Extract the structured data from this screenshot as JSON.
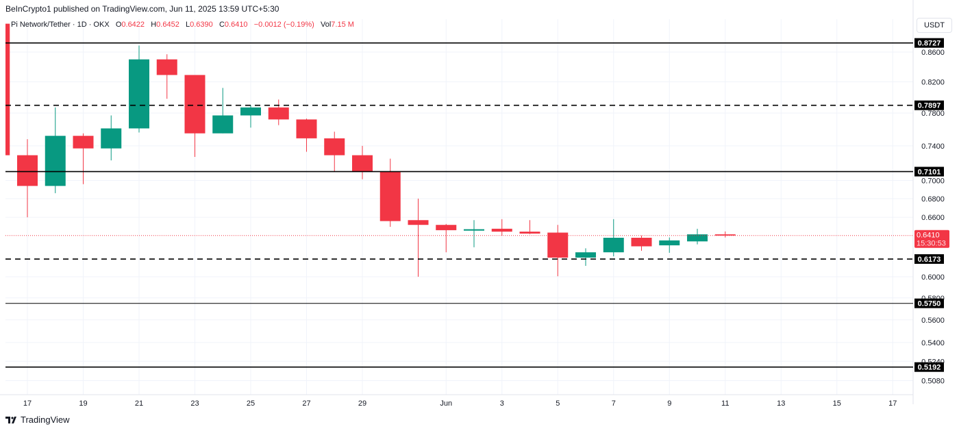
{
  "publisher_line": "BeInCrypto1 published on TradingView.com, Jun 11, 2025 13:59 UTC+5:30",
  "legend": {
    "symbol": "Pi Network/Tether · 1D · OKX",
    "o_label": "O",
    "o": "0.6422",
    "h_label": "H",
    "h": "0.6452",
    "l_label": "L",
    "l": "0.6390",
    "c_label": "C",
    "c": "0.6410",
    "change": "−0.0012 (−0.19%)",
    "vol_label": "Vol",
    "vol": "7.15 M"
  },
  "currency_button": "USDT",
  "footer_brand": "TradingView",
  "colors": {
    "up": "#089981",
    "down": "#f23645",
    "level": "#000000",
    "grid": "#f0f3fa"
  },
  "chart_data": {
    "type": "candlestick",
    "scale": "log",
    "ylim": [
      0.5,
      0.9
    ],
    "grid": true,
    "y_ticks": [
      "0.8600",
      "0.8200",
      "0.7800",
      "0.7400",
      "0.7000",
      "0.6800",
      "0.6600",
      "0.6000",
      "0.5800",
      "0.5600",
      "0.5400",
      "0.5240",
      "0.5080"
    ],
    "x_ticks": [
      {
        "day": 1,
        "label": "17"
      },
      {
        "day": 3,
        "label": "19"
      },
      {
        "day": 5,
        "label": "21"
      },
      {
        "day": 7,
        "label": "23"
      },
      {
        "day": 9,
        "label": "25"
      },
      {
        "day": 11,
        "label": "27"
      },
      {
        "day": 13,
        "label": "29"
      },
      {
        "day": 16,
        "label": "Jun"
      },
      {
        "day": 18,
        "label": "3"
      },
      {
        "day": 20,
        "label": "5"
      },
      {
        "day": 22,
        "label": "7"
      },
      {
        "day": 24,
        "label": "9"
      },
      {
        "day": 26,
        "label": "11"
      },
      {
        "day": 28,
        "label": "13"
      },
      {
        "day": 30,
        "label": "15"
      },
      {
        "day": 32,
        "label": "17"
      }
    ],
    "candles": [
      {
        "date": "2025-05-16",
        "o": 0.9,
        "h": 0.9,
        "l": 0.729,
        "c": 0.729
      },
      {
        "date": "2025-05-17",
        "o": 0.729,
        "h": 0.748,
        "l": 0.66,
        "c": 0.694
      },
      {
        "date": "2025-05-18",
        "o": 0.694,
        "h": 0.787,
        "l": 0.686,
        "c": 0.752
      },
      {
        "date": "2025-05-19",
        "o": 0.752,
        "h": 0.755,
        "l": 0.696,
        "c": 0.737
      },
      {
        "date": "2025-05-20",
        "o": 0.737,
        "h": 0.777,
        "l": 0.723,
        "c": 0.761
      },
      {
        "date": "2025-05-21",
        "o": 0.761,
        "h": 0.869,
        "l": 0.756,
        "c": 0.85
      },
      {
        "date": "2025-05-22",
        "o": 0.85,
        "h": 0.857,
        "l": 0.798,
        "c": 0.829
      },
      {
        "date": "2025-05-23",
        "o": 0.829,
        "h": 0.829,
        "l": 0.727,
        "c": 0.755
      },
      {
        "date": "2025-05-24",
        "o": 0.755,
        "h": 0.812,
        "l": 0.755,
        "c": 0.777
      },
      {
        "date": "2025-05-25",
        "o": 0.777,
        "h": 0.79,
        "l": 0.762,
        "c": 0.787
      },
      {
        "date": "2025-05-26",
        "o": 0.787,
        "h": 0.797,
        "l": 0.765,
        "c": 0.772
      },
      {
        "date": "2025-05-27",
        "o": 0.772,
        "h": 0.773,
        "l": 0.733,
        "c": 0.749
      },
      {
        "date": "2025-05-28",
        "o": 0.749,
        "h": 0.757,
        "l": 0.71,
        "c": 0.729
      },
      {
        "date": "2025-05-29",
        "o": 0.729,
        "h": 0.74,
        "l": 0.7015,
        "c": 0.71
      },
      {
        "date": "2025-05-30",
        "o": 0.71,
        "h": 0.725,
        "l": 0.65,
        "c": 0.656
      },
      {
        "date": "2025-05-31",
        "o": 0.657,
        "h": 0.68,
        "l": 0.6,
        "c": 0.652
      },
      {
        "date": "2025-06-01",
        "o": 0.652,
        "h": 0.653,
        "l": 0.624,
        "c": 0.6465
      },
      {
        "date": "2025-06-02",
        "o": 0.646,
        "h": 0.657,
        "l": 0.629,
        "c": 0.6475
      },
      {
        "date": "2025-06-03",
        "o": 0.648,
        "h": 0.658,
        "l": 0.641,
        "c": 0.645
      },
      {
        "date": "2025-06-04",
        "o": 0.645,
        "h": 0.657,
        "l": 0.6425,
        "c": 0.643
      },
      {
        "date": "2025-06-05",
        "o": 0.644,
        "h": 0.652,
        "l": 0.6005,
        "c": 0.6187
      },
      {
        "date": "2025-06-06",
        "o": 0.6187,
        "h": 0.628,
        "l": 0.6106,
        "c": 0.624
      },
      {
        "date": "2025-06-07",
        "o": 0.624,
        "h": 0.658,
        "l": 0.62,
        "c": 0.6387
      },
      {
        "date": "2025-06-08",
        "o": 0.6387,
        "h": 0.641,
        "l": 0.6255,
        "c": 0.63
      },
      {
        "date": "2025-06-09",
        "o": 0.631,
        "h": 0.639,
        "l": 0.6235,
        "c": 0.636
      },
      {
        "date": "2025-06-10",
        "o": 0.635,
        "h": 0.648,
        "l": 0.632,
        "c": 0.6422
      },
      {
        "date": "2025-06-11",
        "o": 0.6422,
        "h": 0.6452,
        "l": 0.639,
        "c": 0.641
      }
    ],
    "levels": [
      {
        "price": 0.8727,
        "label": "0.8727",
        "style": "solid"
      },
      {
        "price": 0.7897,
        "label": "0.7897",
        "style": "dashed"
      },
      {
        "price": 0.7101,
        "label": "0.7101",
        "style": "solid"
      },
      {
        "price": 0.6173,
        "label": "0.6173",
        "style": "dashed"
      },
      {
        "price": 0.575,
        "label": "0.5750",
        "style": "solid-thin"
      },
      {
        "price": 0.5192,
        "label": "0.5192",
        "style": "solid"
      }
    ],
    "last_price": {
      "price": 0.641,
      "label": "0.6410",
      "countdown": "15:30:53"
    }
  }
}
